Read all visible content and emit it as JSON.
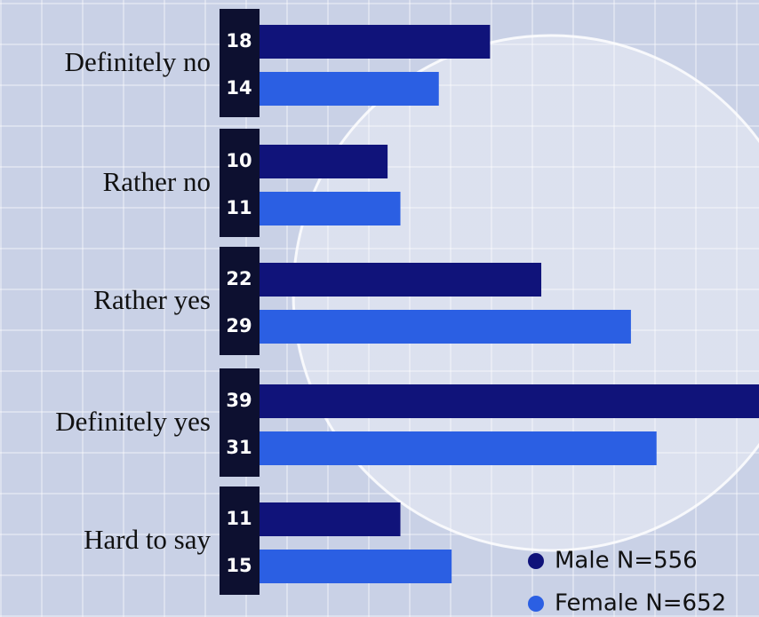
{
  "chart_data": {
    "type": "bar",
    "orientation": "horizontal",
    "categories": [
      "Definitely no",
      "Rather no",
      "Rather yes",
      "Definitely yes",
      "Hard to say"
    ],
    "series": [
      {
        "name": "Male N=556",
        "color": "#10137a",
        "values": [
          18,
          10,
          22,
          39,
          11
        ]
      },
      {
        "name": "Female N=652",
        "color": "#2b5fe3",
        "values": [
          14,
          11,
          29,
          31,
          15
        ]
      }
    ]
  }
}
